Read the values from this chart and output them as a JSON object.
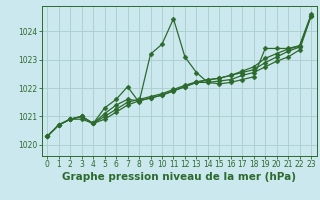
{
  "title": "Graphe pression niveau de la mer (hPa)",
  "background_color": "#cce8ef",
  "grid_color": "#aacccc",
  "line_color": "#2d6a2d",
  "x_min": -0.5,
  "x_max": 23.5,
  "y_min": 1019.6,
  "y_max": 1024.9,
  "y_ticks": [
    1020,
    1021,
    1022,
    1023,
    1024
  ],
  "x_ticks": [
    0,
    1,
    2,
    3,
    4,
    5,
    6,
    7,
    8,
    9,
    10,
    11,
    12,
    13,
    14,
    15,
    16,
    17,
    18,
    19,
    20,
    21,
    22,
    23
  ],
  "series": [
    {
      "x": [
        0,
        1,
        2,
        3,
        4,
        5,
        6,
        7,
        8,
        9,
        10,
        11,
        12,
        13,
        14,
        15,
        16,
        17,
        18,
        19,
        20,
        21,
        22,
        23
      ],
      "y": [
        1020.3,
        1020.7,
        1020.9,
        1020.9,
        1020.75,
        1021.3,
        1021.6,
        1022.05,
        1021.5,
        1023.2,
        1023.55,
        1024.45,
        1023.1,
        1022.55,
        1022.2,
        1022.15,
        1022.2,
        1022.3,
        1022.4,
        1023.4,
        1023.4,
        1023.4,
        1023.5,
        1024.6
      ]
    },
    {
      "x": [
        0,
        1,
        2,
        3,
        4,
        5,
        6,
        7,
        8,
        9,
        10,
        11,
        12,
        13,
        14,
        15,
        16,
        17,
        18,
        19,
        20,
        21,
        22,
        23
      ],
      "y": [
        1020.3,
        1020.7,
        1020.9,
        1021.0,
        1020.75,
        1021.1,
        1021.4,
        1021.6,
        1021.55,
        1021.65,
        1021.75,
        1021.9,
        1022.05,
        1022.2,
        1022.2,
        1022.25,
        1022.3,
        1022.45,
        1022.55,
        1022.75,
        1022.95,
        1023.1,
        1023.35,
        1024.55
      ]
    },
    {
      "x": [
        0,
        1,
        2,
        3,
        4,
        5,
        6,
        7,
        8,
        9,
        10,
        11,
        12,
        13,
        14,
        15,
        16,
        17,
        18,
        19,
        20,
        21,
        22,
        23
      ],
      "y": [
        1020.3,
        1020.7,
        1020.9,
        1021.0,
        1020.75,
        1021.0,
        1021.25,
        1021.5,
        1021.6,
        1021.7,
        1021.8,
        1021.95,
        1022.1,
        1022.22,
        1022.3,
        1022.35,
        1022.45,
        1022.55,
        1022.65,
        1022.9,
        1023.1,
        1023.3,
        1023.45,
        1024.55
      ]
    },
    {
      "x": [
        0,
        1,
        2,
        3,
        4,
        5,
        6,
        7,
        8,
        9,
        10,
        11,
        12,
        13,
        14,
        15,
        16,
        17,
        18,
        19,
        20,
        21,
        22,
        23
      ],
      "y": [
        1020.3,
        1020.7,
        1020.9,
        1021.0,
        1020.75,
        1020.9,
        1021.15,
        1021.4,
        1021.55,
        1021.65,
        1021.75,
        1021.9,
        1022.05,
        1022.2,
        1022.28,
        1022.35,
        1022.45,
        1022.6,
        1022.75,
        1023.05,
        1023.22,
        1023.38,
        1023.48,
        1024.55
      ]
    }
  ],
  "marker": "D",
  "marker_size": 2.5,
  "line_width": 0.9,
  "title_fontsize": 7.5,
  "tick_fontsize": 5.5
}
